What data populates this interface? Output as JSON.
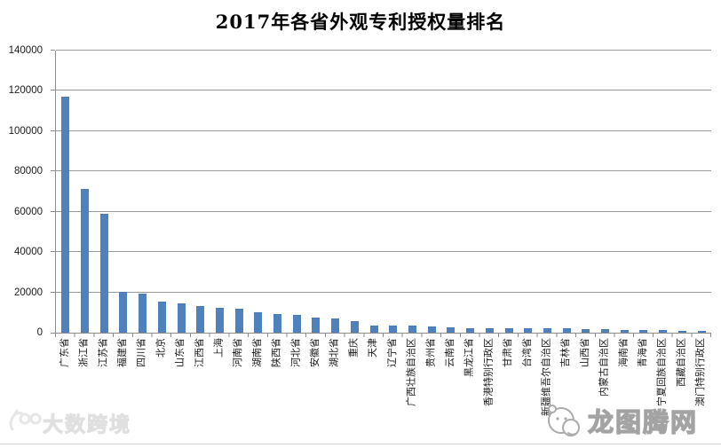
{
  "chart": {
    "title": "2017年各省外观专利授权量排名",
    "watermark_left": "大数跨境",
    "watermark_right": "龙图腾网"
  },
  "chart_data": {
    "type": "bar",
    "title": "2017年各省外观专利授权量排名",
    "categories": [
      "广东省",
      "浙江省",
      "江苏省",
      "福建省",
      "四川省",
      "北京",
      "山东省",
      "江西省",
      "上海",
      "河南省",
      "湖南省",
      "陕西省",
      "河北省",
      "安徽省",
      "湖北省",
      "重庆",
      "天津",
      "辽宁省",
      "广西壮族自治区",
      "贵州省",
      "云南省",
      "黑龙江省",
      "香港特别行政区",
      "甘肃省",
      "台湾省",
      "新疆维吾尔自治区",
      "吉林省",
      "山西省",
      "内蒙古自治区",
      "海南省",
      "青海省",
      "宁夏回族自治区",
      "西藏自治区",
      "澳门特别行政区"
    ],
    "values": [
      116600,
      70700,
      58600,
      19800,
      19100,
      15000,
      13900,
      12600,
      11700,
      11400,
      9500,
      8900,
      8200,
      7000,
      6800,
      5300,
      3200,
      3000,
      2900,
      2800,
      2100,
      2000,
      1950,
      1900,
      1850,
      1750,
      1650,
      1550,
      1200,
      900,
      850,
      750,
      550,
      450
    ],
    "xlabel": "",
    "ylabel": "",
    "ylim": [
      0,
      140000
    ],
    "yticks": [
      0,
      20000,
      40000,
      60000,
      80000,
      100000,
      120000,
      140000
    ],
    "ytick_labels": [
      "0",
      "20000",
      "40000",
      "60000",
      "80000",
      "100000",
      "120000",
      "140000"
    ],
    "bar_color": "#4f81bd",
    "gridline_color": "#9a9a9a",
    "grid": "horizontal gridlines on",
    "legend_position": "none",
    "x_label_rotation_deg": -90
  }
}
